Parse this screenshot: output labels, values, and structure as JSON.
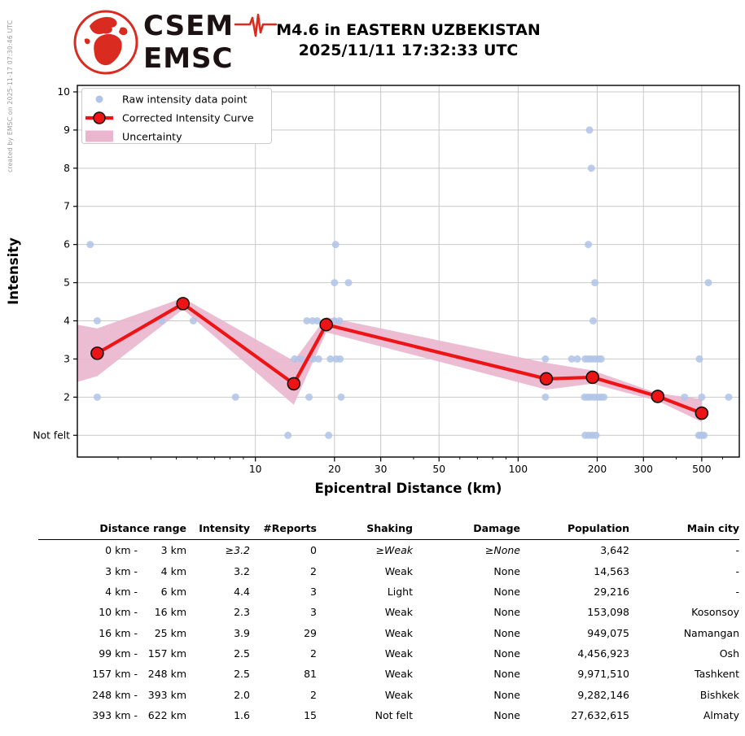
{
  "watermark": "created by EMSC on 2025-11-17 07:30:46 UTC",
  "logo": {
    "top": "CSEM",
    "bottom": "EMSC"
  },
  "title": {
    "line1": "M4.6 in EASTERN UZBEKISTAN",
    "line2": "2025/11/11 17:32:33 UTC"
  },
  "colors": {
    "raw_point": "#b0c4e8",
    "curve": "#ee1416",
    "band": "#eab5ce",
    "grid": "#c9c9c9",
    "axis": "#000000",
    "watermark_text": "#999999",
    "logo_red": "#d92b1f"
  },
  "chart_data": {
    "type": "line",
    "x_scale": "log",
    "xlabel": "Epicentral Distance (km)",
    "ylabel": "Intensity",
    "xlim": [
      2.1,
      695
    ],
    "ylim": [
      0.43,
      10.17
    ],
    "x_major_ticks": [
      10,
      20,
      30,
      50,
      100,
      200,
      300,
      500
    ],
    "x_minor_ticks": [
      3,
      4,
      5,
      6,
      7,
      8,
      9,
      40,
      60,
      70,
      80,
      90,
      400,
      600
    ],
    "y_ticks": [
      1,
      2,
      3,
      4,
      5,
      6,
      7,
      8,
      9,
      10
    ],
    "y_tick_labels": [
      "Not felt",
      "2",
      "3",
      "4",
      "5",
      "6",
      "7",
      "8",
      "9",
      "10"
    ],
    "grid": true,
    "legend": {
      "position": "upper left",
      "entries": [
        "Raw intensity data point",
        "Corrected Intensity Curve",
        "Uncertainty"
      ]
    },
    "series": [
      {
        "name": "Raw intensity data point",
        "type": "scatter",
        "points": [
          [
            2.35,
            6
          ],
          [
            2.5,
            4
          ],
          [
            2.5,
            2
          ],
          [
            4.4,
            4
          ],
          [
            5.8,
            4
          ],
          [
            8.4,
            2
          ],
          [
            13.3,
            1
          ],
          [
            14.1,
            3
          ],
          [
            14.9,
            3
          ],
          [
            15.7,
            4
          ],
          [
            16.5,
            4
          ],
          [
            17.2,
            4
          ],
          [
            16.0,
            2
          ],
          [
            16.6,
            3
          ],
          [
            17.4,
            3
          ],
          [
            19.0,
            1
          ],
          [
            19.3,
            3
          ],
          [
            20.3,
            3
          ],
          [
            21.0,
            3
          ],
          [
            20.0,
            5
          ],
          [
            22.6,
            5
          ],
          [
            20.2,
            6
          ],
          [
            20.0,
            4
          ],
          [
            20.9,
            4
          ],
          [
            21.2,
            2
          ],
          [
            127,
            3
          ],
          [
            127,
            2
          ],
          [
            160,
            3
          ],
          [
            168,
            3
          ],
          [
            180,
            3
          ],
          [
            185,
            3
          ],
          [
            190,
            3
          ],
          [
            196,
            3
          ],
          [
            202,
            3
          ],
          [
            207,
            3
          ],
          [
            179,
            2
          ],
          [
            184,
            2
          ],
          [
            189,
            2
          ],
          [
            195,
            2
          ],
          [
            201,
            2
          ],
          [
            207,
            2
          ],
          [
            212,
            2
          ],
          [
            180,
            1
          ],
          [
            186,
            1
          ],
          [
            192,
            1
          ],
          [
            198,
            1
          ],
          [
            185,
            6
          ],
          [
            187,
            9
          ],
          [
            190,
            8
          ],
          [
            193,
            4
          ],
          [
            196,
            5
          ],
          [
            430,
            2
          ],
          [
            500,
            2
          ],
          [
            633,
            2
          ],
          [
            490,
            3
          ],
          [
            530,
            5
          ],
          [
            487,
            1
          ],
          [
            494,
            1
          ],
          [
            502,
            1
          ],
          [
            510,
            1
          ]
        ]
      },
      {
        "name": "Corrected Intensity Curve",
        "type": "line",
        "points": [
          [
            2.5,
            3.15
          ],
          [
            5.3,
            4.45
          ],
          [
            14,
            2.35
          ],
          [
            18.6,
            3.9
          ],
          [
            128,
            2.48
          ],
          [
            192,
            2.52
          ],
          [
            340,
            2.02
          ],
          [
            500,
            1.58
          ]
        ]
      },
      {
        "name": "Uncertainty",
        "type": "band",
        "x": [
          2.1,
          2.5,
          5.3,
          14,
          18.6,
          128,
          192,
          340,
          500
        ],
        "upper": [
          3.9,
          3.8,
          4.6,
          2.95,
          4.1,
          2.9,
          2.7,
          2.1,
          1.95
        ],
        "lower": [
          2.4,
          2.55,
          4.3,
          1.8,
          3.7,
          2.2,
          2.35,
          1.9,
          1.35
        ]
      }
    ]
  },
  "table": {
    "headers": [
      "Distance range",
      "Intensity",
      "#Reports",
      "Shaking",
      "Damage",
      "Population",
      "Main city"
    ],
    "rows": [
      {
        "range_lo": "0 km -",
        "range_hi": "3 km",
        "intensity": "≥3.2",
        "reports": "0",
        "shaking": "≥Weak",
        "damage": "≥None",
        "population": "3,642",
        "city": "-",
        "min_values": true
      },
      {
        "range_lo": "3 km -",
        "range_hi": "4 km",
        "intensity": "3.2",
        "reports": "2",
        "shaking": "Weak",
        "damage": "None",
        "population": "14,563",
        "city": "-",
        "min_values": false
      },
      {
        "range_lo": "4 km -",
        "range_hi": "6 km",
        "intensity": "4.4",
        "reports": "3",
        "shaking": "Light",
        "damage": "None",
        "population": "29,216",
        "city": "-",
        "min_values": false
      },
      {
        "range_lo": "10 km -",
        "range_hi": "16 km",
        "intensity": "2.3",
        "reports": "3",
        "shaking": "Weak",
        "damage": "None",
        "population": "153,098",
        "city": "Kosonsoy",
        "min_values": false
      },
      {
        "range_lo": "16 km -",
        "range_hi": "25 km",
        "intensity": "3.9",
        "reports": "29",
        "shaking": "Weak",
        "damage": "None",
        "population": "949,075",
        "city": "Namangan",
        "min_values": false
      },
      {
        "range_lo": "99 km -",
        "range_hi": "157 km",
        "intensity": "2.5",
        "reports": "2",
        "shaking": "Weak",
        "damage": "None",
        "population": "4,456,923",
        "city": "Osh",
        "min_values": false
      },
      {
        "range_lo": "157 km -",
        "range_hi": "248 km",
        "intensity": "2.5",
        "reports": "81",
        "shaking": "Weak",
        "damage": "None",
        "population": "9,971,510",
        "city": "Tashkent",
        "min_values": false
      },
      {
        "range_lo": "248 km -",
        "range_hi": "393 km",
        "intensity": "2.0",
        "reports": "2",
        "shaking": "Weak",
        "damage": "None",
        "population": "9,282,146",
        "city": "Bishkek",
        "min_values": false
      },
      {
        "range_lo": "393 km -",
        "range_hi": "622 km",
        "intensity": "1.6",
        "reports": "15",
        "shaking": "Not felt",
        "damage": "None",
        "population": "27,632,615",
        "city": "Almaty",
        "min_values": false
      }
    ]
  }
}
